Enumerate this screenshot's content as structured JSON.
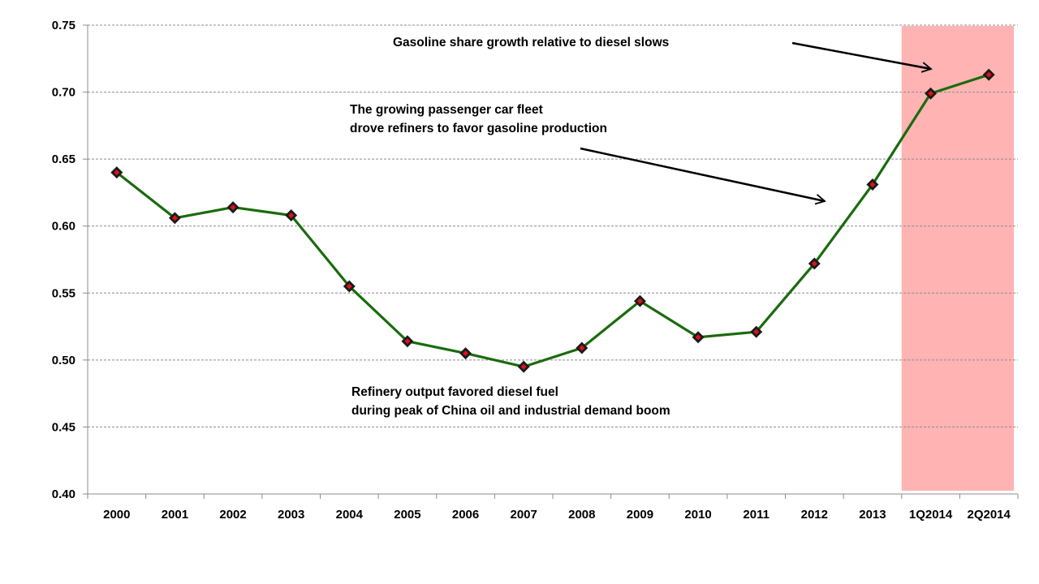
{
  "chart_data": {
    "type": "line",
    "title": "",
    "xlabel": "",
    "ylabel": "",
    "categories": [
      "2000",
      "2001",
      "2002",
      "2003",
      "2004",
      "2005",
      "2006",
      "2007",
      "2008",
      "2009",
      "2010",
      "2011",
      "2012",
      "2013",
      "1Q2014",
      "2Q2014"
    ],
    "series": [
      {
        "values": [
          0.64,
          0.606,
          0.614,
          0.608,
          0.555,
          0.514,
          0.505,
          0.495,
          0.509,
          0.544,
          0.517,
          0.521,
          0.572,
          0.631,
          0.699,
          0.713
        ]
      }
    ],
    "ylim": [
      0.4,
      0.75
    ],
    "yticks": [
      "0.40",
      "0.45",
      "0.50",
      "0.55",
      "0.60",
      "0.65",
      "0.70",
      "0.75"
    ],
    "grid": "horizontal dashed",
    "highlight_categories": [
      "1Q2014",
      "2Q2014"
    ],
    "colors": {
      "line": "#1a6b0d",
      "marker_fill": "#e0101a",
      "marker_edge": "#1a1a1a",
      "highlight": "#ffb3b3",
      "grid": "#8c8c8c",
      "text": "#000000"
    },
    "annotations": {
      "top": [
        "Gasoline share growth relative to diesel slows"
      ],
      "middle": [
        "The growing passenger car fleet",
        "drove refiners to favor gasoline production"
      ],
      "bottom": [
        "Refinery output favored diesel fuel",
        "during peak of China oil and industrial demand boom"
      ]
    }
  }
}
